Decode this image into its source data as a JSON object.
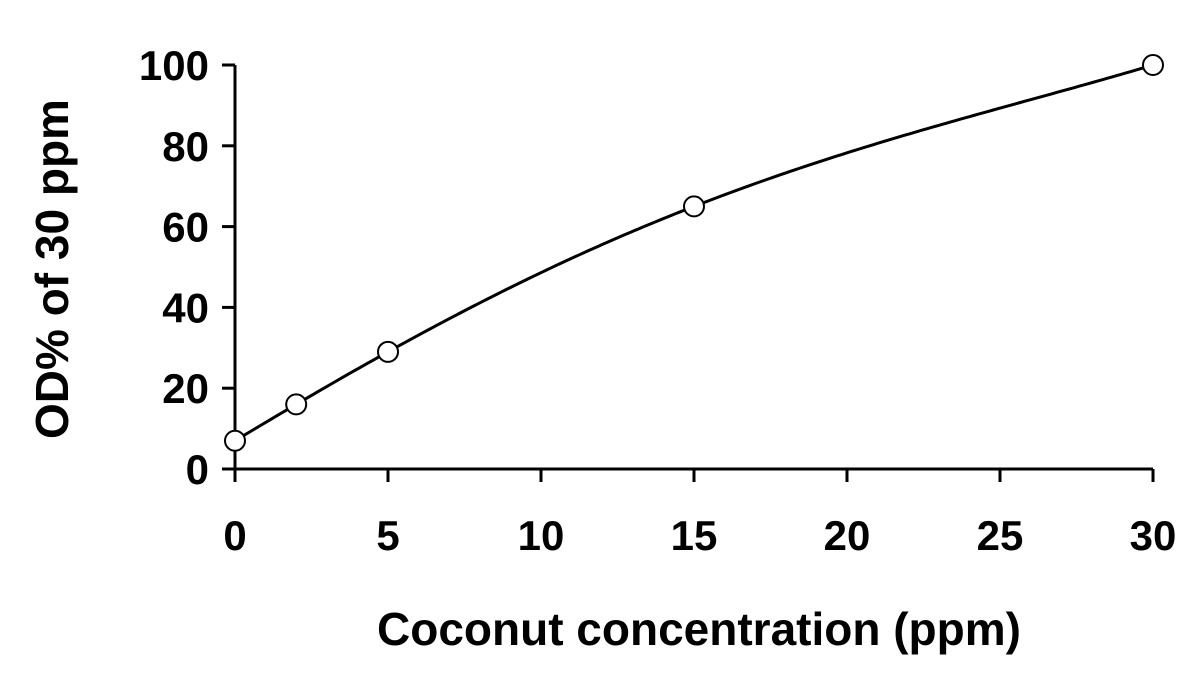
{
  "chart_data": {
    "type": "scatter",
    "title": "",
    "xlabel": "Coconut concentration (ppm)",
    "ylabel": "OD% of 30 ppm",
    "xlim": [
      0,
      30
    ],
    "ylim": [
      0,
      100
    ],
    "x_ticks": [
      0,
      5,
      10,
      15,
      20,
      25,
      30
    ],
    "y_ticks": [
      0,
      20,
      40,
      60,
      80,
      100
    ],
    "grid": false,
    "legend": "none",
    "series": [
      {
        "x": [
          0,
          2,
          5,
          15,
          30
        ],
        "y": [
          7,
          16,
          29,
          65,
          100
        ],
        "marker": "open-circle",
        "fit_line": "smooth-curve"
      }
    ],
    "colors": {
      "line": "#000000",
      "marker_fill": "#ffffff",
      "axis": "#000000"
    }
  }
}
